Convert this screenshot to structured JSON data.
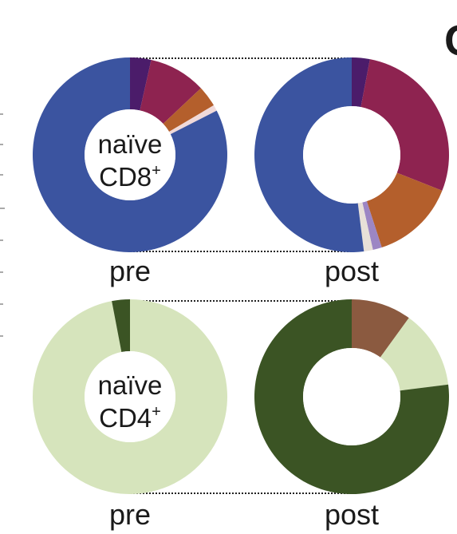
{
  "chart_data": [
    {
      "type": "donut",
      "panel": "naive-cd8",
      "center_label": [
        "naïve",
        "CD8+"
      ],
      "conditions": [
        {
          "label": "pre",
          "segments": [
            {
              "value": 3.5,
              "color": "#4b1c6a"
            },
            {
              "value": 9.5,
              "color": "#8e2350"
            },
            {
              "value": 3.5,
              "color": "#b45f2c"
            },
            {
              "value": 1.0,
              "color": "#f0d9d9"
            },
            {
              "value": 82.5,
              "color": "#3b54a0"
            }
          ]
        },
        {
          "label": "post",
          "segments": [
            {
              "value": 3.0,
              "color": "#4b1c6a"
            },
            {
              "value": 28.0,
              "color": "#8e2350"
            },
            {
              "value": 14.0,
              "color": "#b45f2c"
            },
            {
              "value": 1.5,
              "color": "#9c86c4"
            },
            {
              "value": 1.5,
              "color": "#e8e0d8"
            },
            {
              "value": 52.0,
              "color": "#3b54a0"
            }
          ]
        }
      ]
    },
    {
      "type": "donut",
      "panel": "naive-cd4",
      "center_label": [
        "naïve",
        "CD4+"
      ],
      "conditions": [
        {
          "label": "pre",
          "segments": [
            {
              "value": 97.0,
              "color": "#d6e4bc"
            },
            {
              "value": 3.0,
              "color": "#3b5424"
            }
          ]
        },
        {
          "label": "post",
          "segments": [
            {
              "value": 10.0,
              "color": "#8b5a40"
            },
            {
              "value": 13.0,
              "color": "#d6e4bc"
            },
            {
              "value": 77.0,
              "color": "#3b5424"
            }
          ]
        }
      ]
    }
  ],
  "panel_letter": "C",
  "colors": {
    "background": "#ffffff",
    "text": "#1a1a1a"
  }
}
